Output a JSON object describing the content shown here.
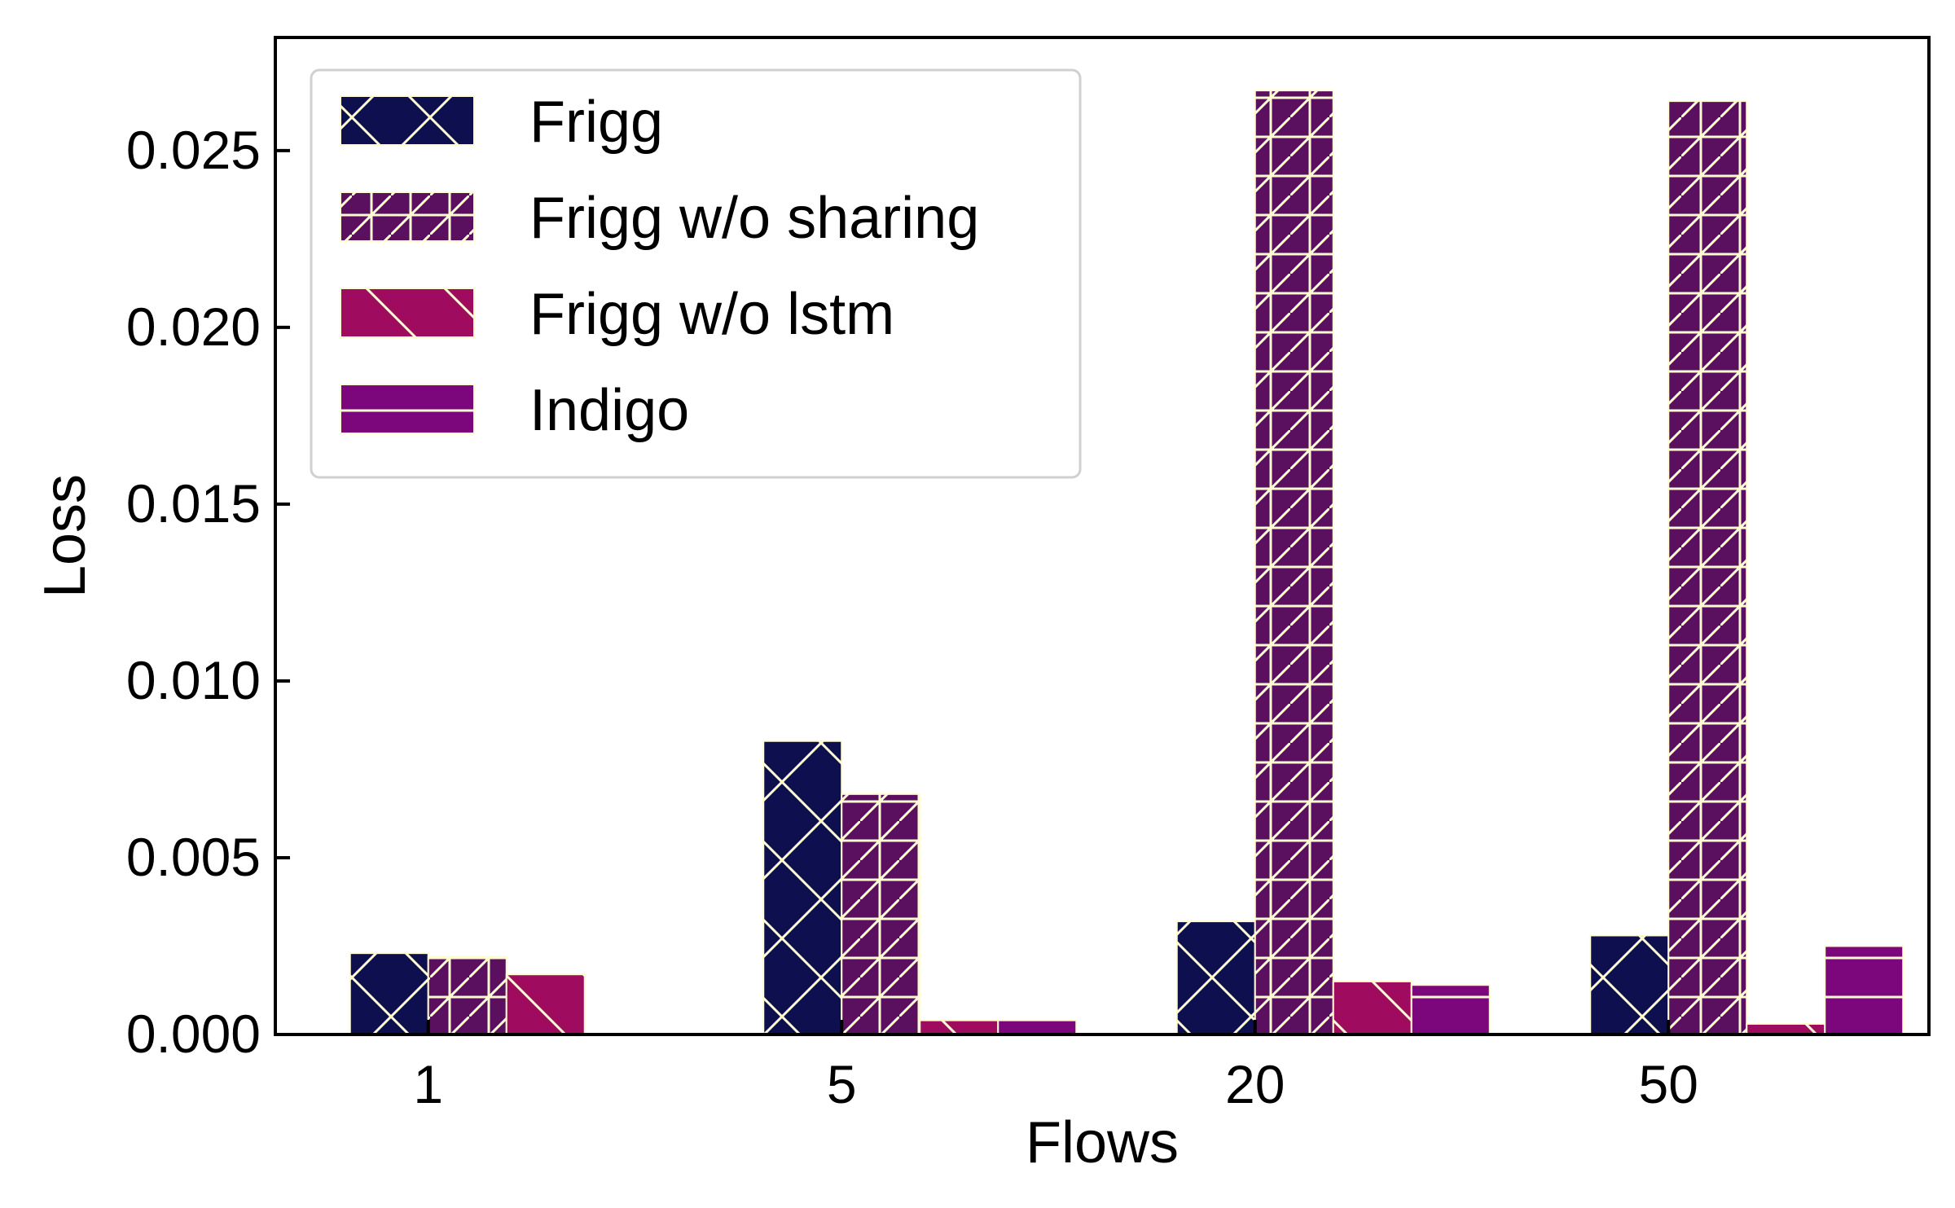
{
  "chart_data": {
    "type": "bar",
    "title": "",
    "xlabel": "Flows",
    "ylabel": "Loss",
    "categories": [
      "1",
      "5",
      "20",
      "50"
    ],
    "ylim": [
      0,
      0.0282
    ],
    "yticks": [
      "0.000",
      "0.005",
      "0.010",
      "0.015",
      "0.020",
      "0.025"
    ],
    "yticks_values": [
      0,
      0.005,
      0.01,
      0.015,
      0.02,
      0.025
    ],
    "grid": false,
    "legend_position": "top-left",
    "series": [
      {
        "name": "Frigg",
        "values": [
          0.0023,
          0.0083,
          0.0032,
          0.0028
        ],
        "color": "#0d0f4e",
        "hatch": "x"
      },
      {
        "name": "Frigg w/o sharing",
        "values": [
          0.0022,
          0.0068,
          0.0267,
          0.0264
        ],
        "color": "#5a105e",
        "hatch": "+/"
      },
      {
        "name": "Frigg w/o lstm",
        "values": [
          0.0017,
          0.0004,
          0.0015,
          0.0003
        ],
        "color": "#9e0b5f",
        "hatch": "\\"
      },
      {
        "name": "Indigo",
        "values": [
          0.0,
          0.0004,
          0.0014,
          0.0025
        ],
        "color": "#7c067c",
        "hatch": "-"
      }
    ],
    "hatch_color": "#fffbd2"
  }
}
